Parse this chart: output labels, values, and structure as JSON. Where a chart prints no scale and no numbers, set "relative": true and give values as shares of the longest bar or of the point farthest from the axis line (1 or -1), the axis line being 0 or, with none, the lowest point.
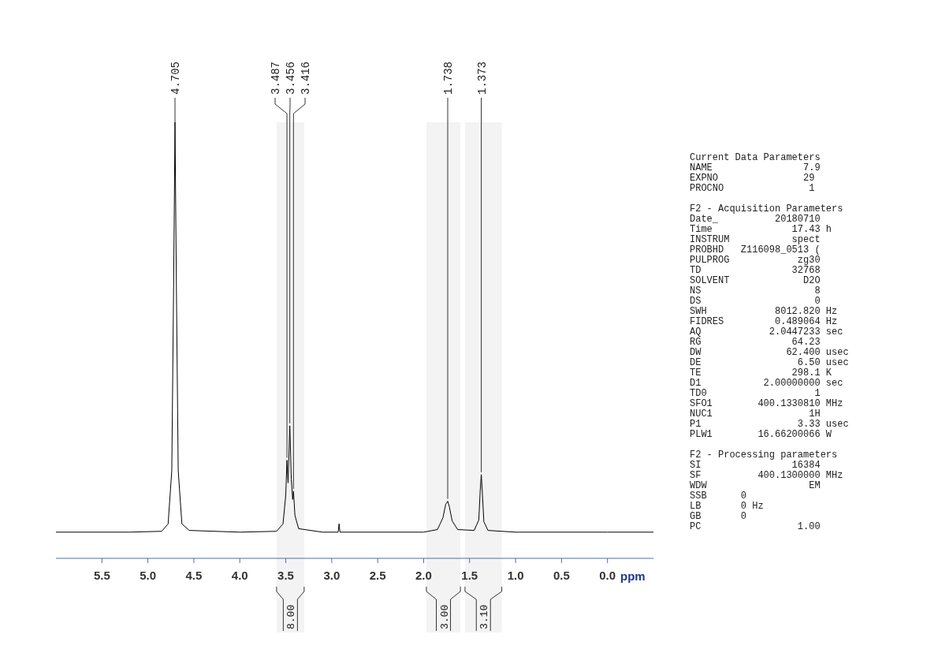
{
  "chart_data": [
    {
      "type": "line",
      "relative": true,
      "xlabel": "ppm",
      "x": [
        6.0,
        5.2,
        4.85,
        4.78,
        4.74,
        4.72,
        4.705,
        4.69,
        4.67,
        4.63,
        4.55,
        4.0,
        3.6,
        3.53,
        3.5,
        3.487,
        3.475,
        3.456,
        3.44,
        3.425,
        3.416,
        3.4,
        3.36,
        3.1,
        2.93,
        2.92,
        2.91,
        2.0,
        1.85,
        1.79,
        1.76,
        1.738,
        1.72,
        1.69,
        1.63,
        1.45,
        1.4,
        1.385,
        1.373,
        1.36,
        1.345,
        1.3,
        1.0,
        0.0,
        -0.5
      ],
      "series": [
        {
          "color": "#000000",
          "values": [
            0.06,
            0.06,
            0.062,
            0.079,
            0.201,
            0.624,
            1.0,
            0.624,
            0.201,
            0.079,
            0.064,
            0.06,
            0.062,
            0.079,
            0.145,
            0.225,
            0.173,
            0.304,
            0.182,
            0.135,
            0.154,
            0.098,
            0.068,
            0.06,
            0.06,
            0.079,
            0.06,
            0.06,
            0.066,
            0.093,
            0.124,
            0.131,
            0.118,
            0.086,
            0.066,
            0.064,
            0.088,
            0.154,
            0.192,
            0.145,
            0.084,
            0.064,
            0.06,
            0.06,
            0.06
          ]
        }
      ],
      "xlim": [
        6.0,
        -0.5
      ],
      "xticks": [
        5.5,
        {
          "value": 5.0,
          "label": "5.0"
        },
        4.5,
        {
          "value": 4.0,
          "label": "4.0"
        },
        3.5,
        {
          "value": 3.0,
          "label": "3.0"
        },
        2.5,
        {
          "value": 2.0,
          "label": "2.0"
        },
        1.5,
        {
          "value": 1.0,
          "label": "1.0"
        },
        0.5,
        {
          "value": 0.0,
          "label": "0.0"
        }
      ],
      "annotations": [
        {
          "text": "4.705",
          "x": 4.705,
          "y": 1.0
        },
        {
          "text": "3.487",
          "x": 3.487,
          "y": 0.225
        },
        {
          "text": "3.456",
          "x": 3.456,
          "y": 0.304
        },
        {
          "text": "3.416",
          "x": 3.416,
          "y": 0.154
        },
        {
          "text": "1.738",
          "x": 1.738,
          "y": 0.131
        },
        {
          "text": "1.373",
          "x": 1.373,
          "y": 0.192
        }
      ],
      "bands": [
        {
          "axis": "x",
          "from": 3.6,
          "to": 3.3,
          "label": "8.00",
          "color": "#f3f3f3"
        },
        {
          "axis": "x",
          "from": 1.97,
          "to": 1.6,
          "label": "3.00",
          "color": "#f3f3f3"
        },
        {
          "axis": "x",
          "from": 1.55,
          "to": 1.15,
          "label": "3.10",
          "color": "#f3f3f3"
        }
      ]
    },
    {
      "type": "other",
      "title": "Current Data Parameters",
      "annotations": [
        "NAME                7.9",
        "EXPNO               29",
        "PROCNO               1"
      ]
    },
    {
      "type": "other",
      "title": "F2 - Acquisition Parameters",
      "annotations": [
        "Date_          20180710",
        "Time              17.43 h",
        "INSTRUM           spect",
        "PROBHD   Z116098_0513 (",
        "PULPROG            zg30",
        "TD                32768",
        "SOLVENT             D2O",
        "NS                    8",
        "DS                    0",
        "SWH            8012.820 Hz",
        "FIDRES         0.489064 Hz",
        "AQ            2.0447233 sec",
        "RG                64.23",
        "DW               62.400 usec",
        "DE                 6.50 usec",
        "TE                298.1 K",
        "D1           2.00000000 sec",
        "TD0                   1",
        "SFO1        400.1330810 MHz",
        "NUC1                 1H",
        "P1                 3.33 usec",
        "PLW1        16.66200066 W"
      ]
    },
    {
      "type": "other",
      "title": "F2 - Processing parameters",
      "annotations": [
        "SI                16384",
        "SF          400.1300000 MHz",
        "WDW                  EM",
        "SSB      0",
        "LB       0 Hz",
        "GB       0",
        "PC                 1.00"
      ]
    }
  ]
}
